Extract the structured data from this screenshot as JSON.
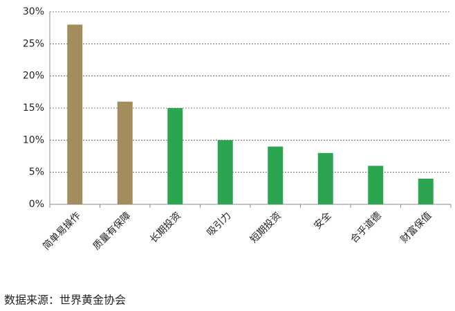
{
  "chart_data": {
    "type": "bar",
    "categories": [
      "简单易操作",
      "质量有保障",
      "长期投资",
      "吸引力",
      "短期投资",
      "安全",
      "合乎道德",
      "财富保值"
    ],
    "values": [
      28,
      16,
      15,
      10,
      9,
      8,
      6,
      4
    ],
    "colors": [
      "#a38d5c",
      "#a38d5c",
      "#2ca551",
      "#2ca551",
      "#2ca551",
      "#2ca551",
      "#2ca551",
      "#2ca551"
    ],
    "ylim": [
      0,
      30
    ],
    "yticks": [
      {
        "value": 0,
        "label": "0%"
      },
      {
        "value": 5,
        "label": "5%"
      },
      {
        "value": 10,
        "label": "10%"
      },
      {
        "value": 15,
        "label": "15%"
      },
      {
        "value": 20,
        "label": "20%"
      },
      {
        "value": 25,
        "label": "25%"
      },
      {
        "value": 30,
        "label": "30%"
      }
    ],
    "grid": true,
    "source": "数据来源：世界黄金协会"
  }
}
